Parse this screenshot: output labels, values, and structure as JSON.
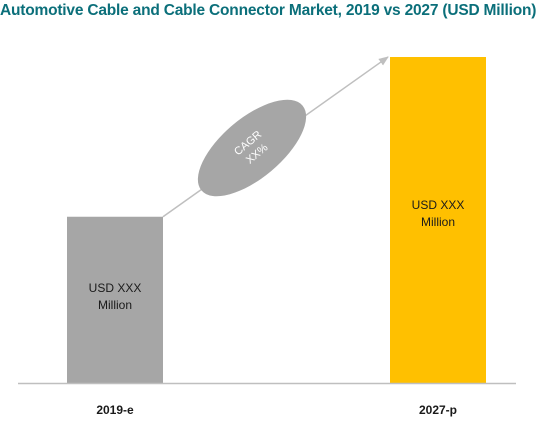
{
  "chart_data": {
    "type": "bar",
    "title": "Automotive Cable and Cable Connector Market, 2019 vs 2027 (USD Million)",
    "categories": [
      "2019-e",
      "2027-p"
    ],
    "values": [
      51,
      100
    ],
    "value_labels": [
      [
        "USD XXX",
        "Million"
      ],
      [
        "USD XXX",
        "Million"
      ]
    ],
    "colors": [
      "#a6a6a6",
      "#ffc000"
    ],
    "annotation": {
      "lines": [
        "CAGR",
        "XX%"
      ],
      "color": "#a6a6a6",
      "arrow_color": "#bfbfbf"
    },
    "axis_color": "#bfbfbf",
    "ylim": [
      0,
      100
    ],
    "grid": false,
    "legend": "none"
  }
}
